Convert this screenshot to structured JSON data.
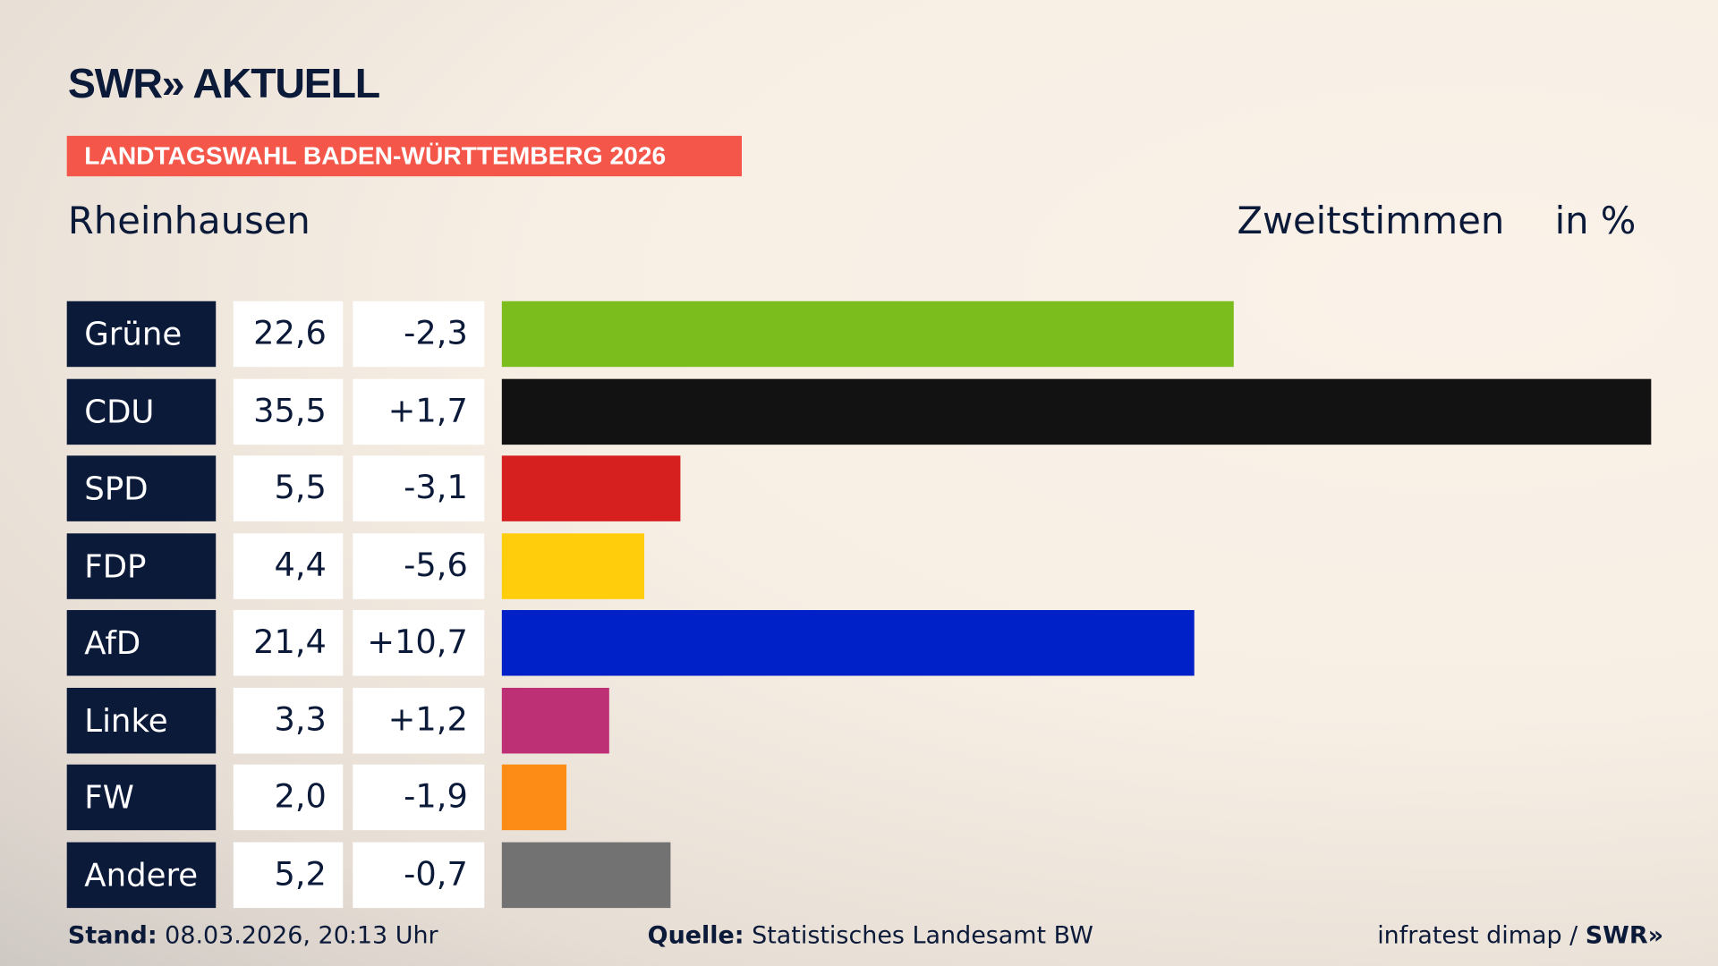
{
  "header": {
    "logo": "SWR» AKTUELL",
    "badge": "LANDTAGSWAHL BADEN-WÜRTTEMBERG 2026",
    "place": "Rheinhausen",
    "vote_type": "Zweitstimmen",
    "unit": "in %"
  },
  "footer": {
    "stand_label": "Stand:",
    "stand_value": " 08.03.2026, 20:13 Uhr",
    "quelle_label": "Quelle:",
    "quelle_value": " Statistisches Landesamt BW",
    "credit": "infratest dimap / ",
    "credit_logo": "SWR»"
  },
  "chart_data": {
    "type": "bar",
    "orientation": "horizontal",
    "title": "Zweitstimmen in %",
    "categories": [
      "Grüne",
      "CDU",
      "SPD",
      "FDP",
      "AfD",
      "Linke",
      "FW",
      "Andere"
    ],
    "values": [
      22.6,
      35.5,
      5.5,
      4.4,
      21.4,
      3.3,
      2.0,
      5.2
    ],
    "value_labels": [
      "22,6",
      "35,5",
      "5,5",
      "4,4",
      "21,4",
      "3,3",
      "2,0",
      "5,2"
    ],
    "diff_labels": [
      "-2,3",
      "+1,7",
      "-3,1",
      "-5,6",
      "+10,7",
      "+1,2",
      "-1,9",
      "-0,7"
    ],
    "diffs": [
      -2.3,
      1.7,
      -3.1,
      -5.6,
      10.7,
      1.2,
      -1.9,
      -0.7
    ],
    "colors": [
      "#7abd1d",
      "#121212",
      "#d6201f",
      "#ffcd0b",
      "#0021c7",
      "#bd3075",
      "#fd8c16",
      "#727272"
    ],
    "xlim": [
      0,
      35.5
    ]
  }
}
